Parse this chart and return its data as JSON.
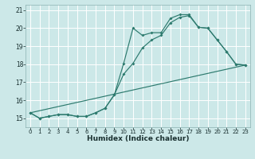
{
  "xlabel": "Humidex (Indice chaleur)",
  "bg_color": "#cce8e8",
  "grid_color": "#ffffff",
  "line_color": "#2d7a6e",
  "xlim": [
    -0.5,
    23.5
  ],
  "ylim": [
    14.5,
    21.3
  ],
  "yticks": [
    15,
    16,
    17,
    18,
    19,
    20,
    21
  ],
  "xticks": [
    0,
    1,
    2,
    3,
    4,
    5,
    6,
    7,
    8,
    9,
    10,
    11,
    12,
    13,
    14,
    15,
    16,
    17,
    18,
    19,
    20,
    21,
    22,
    23
  ],
  "line1_x": [
    0,
    1,
    2,
    3,
    4,
    5,
    6,
    7,
    8,
    9,
    10,
    11,
    12,
    13,
    14,
    15,
    16,
    17,
    18,
    19,
    20,
    21,
    22,
    23
  ],
  "line1_y": [
    15.3,
    15.0,
    15.1,
    15.2,
    15.2,
    15.1,
    15.1,
    15.3,
    15.55,
    16.3,
    18.05,
    20.0,
    19.6,
    19.75,
    19.75,
    20.55,
    20.75,
    20.75,
    20.05,
    20.0,
    19.35,
    18.7,
    18.0,
    17.95
  ],
  "line2_x": [
    0,
    1,
    2,
    3,
    4,
    5,
    6,
    7,
    8,
    9,
    10,
    11,
    12,
    13,
    14,
    15,
    16,
    17,
    18,
    19,
    20,
    21,
    22,
    23
  ],
  "line2_y": [
    15.3,
    15.0,
    15.1,
    15.2,
    15.2,
    15.1,
    15.1,
    15.3,
    15.55,
    16.3,
    17.45,
    18.05,
    18.9,
    19.35,
    19.6,
    20.3,
    20.6,
    20.7,
    20.05,
    20.0,
    19.35,
    18.7,
    18.0,
    17.95
  ],
  "line3_x": [
    0,
    23
  ],
  "line3_y": [
    15.3,
    17.95
  ],
  "marker_style": "D",
  "marker_size": 2.0,
  "line_width": 0.85
}
